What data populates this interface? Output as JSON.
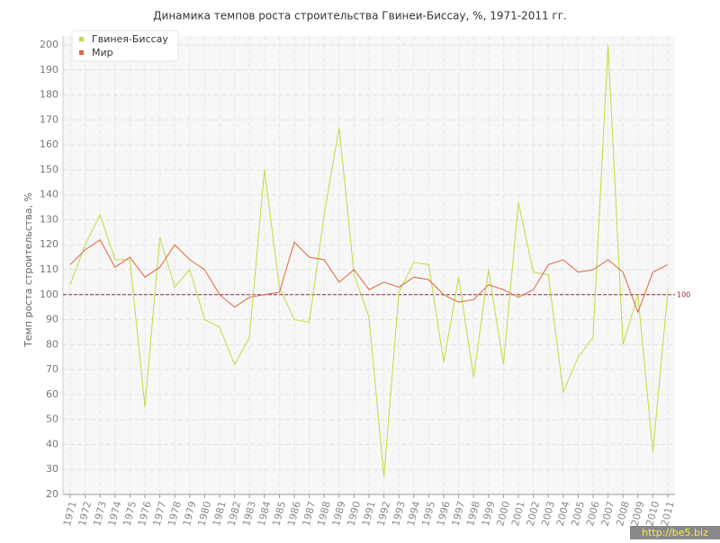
{
  "chart_data": {
    "type": "line",
    "title": "Динамика темпов роста строительства Гвинеи-Биссау, %, 1971-2011 гг.",
    "y_label": "Темп роста строительства, %",
    "categories": [
      "1971",
      "1972",
      "1973",
      "1974",
      "1975",
      "1976",
      "1977",
      "1978",
      "1979",
      "1980",
      "1981",
      "1982",
      "1983",
      "1984",
      "1985",
      "1986",
      "1987",
      "1988",
      "1989",
      "1990",
      "1991",
      "1992",
      "1993",
      "1994",
      "1995",
      "1996",
      "1997",
      "1998",
      "1999",
      "2000",
      "2001",
      "2002",
      "2003",
      "2004",
      "2005",
      "2006",
      "2007",
      "2008",
      "2009",
      "2010",
      "2011"
    ],
    "series": [
      {
        "name": "Гвинея-Биссау",
        "color": "#bfdc3c",
        "values": [
          104,
          120,
          132,
          114,
          114,
          55,
          123,
          103,
          110,
          90,
          87,
          72,
          83,
          150,
          103,
          90,
          89,
          132,
          167,
          108,
          91,
          27,
          101,
          113,
          112,
          73,
          107,
          67,
          110,
          72,
          137,
          109,
          108,
          61,
          75,
          83,
          200,
          80,
          100,
          37,
          101
        ]
      },
      {
        "name": "Мир",
        "color": "#e0643c",
        "values": [
          112,
          118,
          122,
          111,
          115,
          107,
          111,
          120,
          114,
          110,
          100,
          95,
          99,
          100,
          101,
          121,
          115,
          114,
          105,
          110,
          102,
          105,
          103,
          107,
          106,
          100,
          97,
          98,
          104,
          102,
          99,
          102,
          112,
          114,
          109,
          110,
          114,
          109,
          93,
          109,
          112
        ]
      }
    ],
    "ylim": [
      20,
      200
    ],
    "yticks": [
      20,
      30,
      40,
      50,
      60,
      70,
      80,
      90,
      100,
      110,
      120,
      130,
      140,
      150,
      160,
      170,
      180,
      190,
      200
    ],
    "grid": true,
    "reference_line": 100,
    "reference_color": "#a0243a",
    "legend": "top-left",
    "watermark": "http://be5.biz"
  }
}
